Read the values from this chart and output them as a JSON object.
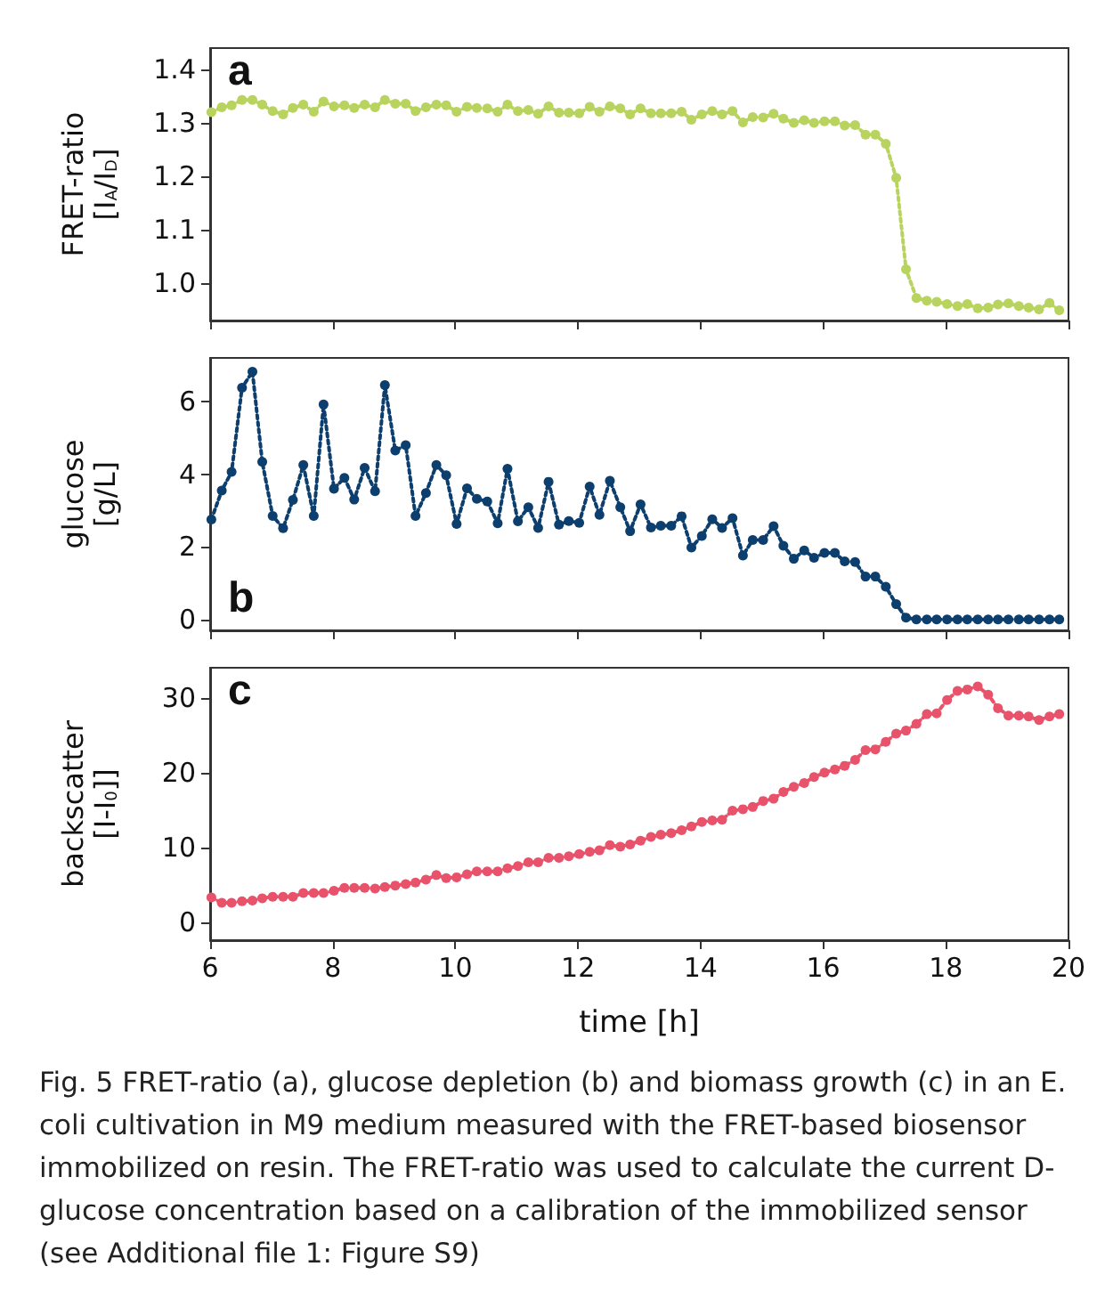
{
  "chart_data": [
    {
      "type": "line",
      "ylabel": "FRET-ratio\n[I$_{A}$/I$_{D}$]",
      "color": "#b9d35f",
      "marker": "circle",
      "line_style": "dotted",
      "tick_labels": "y",
      "xlim": [
        6,
        20
      ],
      "xticks": [
        6,
        8,
        10,
        12,
        14,
        16,
        18,
        20
      ],
      "ylim": [
        0.93,
        1.44
      ],
      "yticks": [
        {
          "value": 1.0,
          "label": "1.0"
        },
        1.1,
        1.2,
        1.3,
        1.4
      ],
      "x": [
        6.02,
        6.19,
        6.35,
        6.52,
        6.69,
        6.85,
        7.02,
        7.19,
        7.35,
        7.52,
        7.69,
        7.85,
        8.02,
        8.19,
        8.35,
        8.52,
        8.69,
        8.85,
        9.02,
        9.19,
        9.35,
        9.52,
        9.69,
        9.85,
        10.02,
        10.19,
        10.35,
        10.52,
        10.69,
        10.85,
        11.02,
        11.19,
        11.35,
        11.52,
        11.69,
        11.85,
        12.02,
        12.19,
        12.35,
        12.52,
        12.69,
        12.85,
        13.02,
        13.19,
        13.35,
        13.52,
        13.69,
        13.85,
        14.02,
        14.19,
        14.35,
        14.52,
        14.69,
        14.85,
        15.02,
        15.19,
        15.35,
        15.52,
        15.69,
        15.85,
        16.02,
        16.19,
        16.35,
        16.52,
        16.69,
        16.85,
        17.02,
        17.19,
        17.35,
        17.52,
        17.69,
        17.85,
        18.02,
        18.19,
        18.35,
        18.52,
        18.69,
        18.85,
        19.02,
        19.19,
        19.35,
        19.52,
        19.69,
        19.85
      ],
      "values": [
        1.32,
        1.329,
        1.333,
        1.343,
        1.343,
        1.334,
        1.322,
        1.316,
        1.328,
        1.334,
        1.321,
        1.34,
        1.331,
        1.333,
        1.328,
        1.334,
        1.329,
        1.343,
        1.336,
        1.336,
        1.322,
        1.329,
        1.334,
        1.333,
        1.321,
        1.33,
        1.328,
        1.327,
        1.321,
        1.334,
        1.322,
        1.324,
        1.317,
        1.331,
        1.319,
        1.319,
        1.318,
        1.33,
        1.321,
        1.331,
        1.327,
        1.316,
        1.327,
        1.318,
        1.318,
        1.318,
        1.321,
        1.306,
        1.316,
        1.322,
        1.316,
        1.322,
        1.301,
        1.311,
        1.31,
        1.317,
        1.308,
        1.3,
        1.305,
        1.3,
        1.303,
        1.303,
        1.295,
        1.296,
        1.278,
        1.278,
        1.261,
        1.197,
        1.026,
        0.972,
        0.967,
        0.965,
        0.961,
        0.957,
        0.961,
        0.953,
        0.954,
        0.96,
        0.962,
        0.957,
        0.954,
        0.951,
        0.963,
        0.949
      ],
      "annotations": [
        "a"
      ]
    },
    {
      "type": "line",
      "ylabel": "glucose\n[g/L]",
      "color": "#0d3f6e",
      "marker": "circle",
      "line_style": "dotted",
      "tick_labels": "y",
      "xlim": [
        6,
        20
      ],
      "xticks": [
        6,
        8,
        10,
        12,
        14,
        16,
        18,
        20
      ],
      "ylim": [
        -0.3,
        7.2
      ],
      "yticks": [
        0,
        2,
        4,
        6
      ],
      "x": [
        6.02,
        6.19,
        6.35,
        6.52,
        6.69,
        6.85,
        7.02,
        7.19,
        7.35,
        7.52,
        7.69,
        7.85,
        8.02,
        8.19,
        8.35,
        8.52,
        8.69,
        8.85,
        9.02,
        9.19,
        9.35,
        9.52,
        9.69,
        9.85,
        10.02,
        10.19,
        10.35,
        10.52,
        10.69,
        10.85,
        11.02,
        11.19,
        11.35,
        11.52,
        11.69,
        11.85,
        12.02,
        12.19,
        12.35,
        12.52,
        12.69,
        12.85,
        13.02,
        13.19,
        13.35,
        13.52,
        13.69,
        13.85,
        14.02,
        14.19,
        14.35,
        14.52,
        14.69,
        14.85,
        15.02,
        15.19,
        15.35,
        15.52,
        15.69,
        15.85,
        16.02,
        16.19,
        16.35,
        16.52,
        16.69,
        16.85,
        17.02,
        17.19,
        17.35,
        17.52,
        17.69,
        17.85,
        18.02,
        18.19,
        18.35,
        18.52,
        18.69,
        18.85,
        19.02,
        19.19,
        19.35,
        19.52,
        19.69,
        19.85
      ],
      "values": [
        2.75,
        3.55,
        4.06,
        6.38,
        6.82,
        4.34,
        2.85,
        2.51,
        3.29,
        4.25,
        2.85,
        5.92,
        3.6,
        3.9,
        3.3,
        4.17,
        3.53,
        6.45,
        4.65,
        4.8,
        2.85,
        3.48,
        4.25,
        3.97,
        2.63,
        3.61,
        3.32,
        3.25,
        2.65,
        4.15,
        2.7,
        3.09,
        2.52,
        3.79,
        2.61,
        2.71,
        2.66,
        3.66,
        2.88,
        3.82,
        3.09,
        2.43,
        3.17,
        2.53,
        2.58,
        2.58,
        2.84,
        1.98,
        2.3,
        2.76,
        2.52,
        2.79,
        1.76,
        2.19,
        2.19,
        2.57,
        2.03,
        1.67,
        1.9,
        1.7,
        1.83,
        1.83,
        1.6,
        1.58,
        1.18,
        1.18,
        0.9,
        0.42,
        0.05,
        0,
        0,
        0,
        0,
        0,
        0,
        0,
        0,
        0,
        0,
        0,
        0,
        0,
        0,
        0
      ],
      "annotations": [
        "b"
      ]
    },
    {
      "type": "line",
      "ylabel": "backscatter\n[I-I$_{0}$]]",
      "xlabel": "time [h]",
      "color": "#e8526b",
      "marker": "circle",
      "line_style": "dotted",
      "xlim": [
        6,
        20
      ],
      "xticks": [
        6,
        8,
        10,
        12,
        14,
        16,
        18,
        20
      ],
      "ylim": [
        -2.4,
        34
      ],
      "yticks": [
        0,
        10,
        20,
        30
      ],
      "x": [
        6.02,
        6.19,
        6.35,
        6.52,
        6.69,
        6.85,
        7.02,
        7.19,
        7.35,
        7.52,
        7.69,
        7.85,
        8.02,
        8.19,
        8.35,
        8.52,
        8.69,
        8.85,
        9.02,
        9.19,
        9.35,
        9.52,
        9.69,
        9.85,
        10.02,
        10.19,
        10.35,
        10.52,
        10.69,
        10.85,
        11.02,
        11.19,
        11.35,
        11.52,
        11.69,
        11.85,
        12.02,
        12.19,
        12.35,
        12.52,
        12.69,
        12.85,
        13.02,
        13.19,
        13.35,
        13.52,
        13.69,
        13.85,
        14.02,
        14.19,
        14.35,
        14.52,
        14.69,
        14.85,
        15.02,
        15.19,
        15.35,
        15.52,
        15.69,
        15.85,
        16.02,
        16.19,
        16.35,
        16.52,
        16.69,
        16.85,
        17.02,
        17.19,
        17.35,
        17.52,
        17.69,
        17.85,
        18.02,
        18.19,
        18.35,
        18.52,
        18.69,
        18.85,
        19.02,
        19.19,
        19.35,
        19.52,
        19.69,
        19.85
      ],
      "values": [
        3.3,
        2.6,
        2.6,
        2.8,
        2.9,
        3.2,
        3.4,
        3.4,
        3.4,
        3.9,
        3.9,
        3.9,
        4.2,
        4.6,
        4.6,
        4.6,
        4.5,
        4.7,
        4.9,
        5.1,
        5.3,
        5.7,
        6.3,
        5.9,
        6.0,
        6.4,
        6.8,
        6.8,
        6.8,
        7.2,
        7.5,
        8.0,
        8.0,
        8.6,
        8.6,
        8.8,
        9.1,
        9.4,
        9.6,
        10.3,
        10.1,
        10.4,
        10.9,
        11.4,
        11.7,
        11.9,
        12.3,
        12.8,
        13.4,
        13.6,
        13.7,
        14.9,
        15.1,
        15.4,
        16.2,
        16.5,
        17.4,
        18.1,
        18.6,
        19.4,
        20.0,
        20.4,
        20.9,
        21.7,
        23.0,
        23.1,
        24.1,
        25.2,
        25.6,
        26.5,
        27.8,
        27.9,
        29.7,
        30.9,
        31.1,
        31.5,
        30.4,
        28.6,
        27.6,
        27.6,
        27.5,
        27.0,
        27.5,
        27.8
      ],
      "annotations": [
        "c",
        "Fig. 5  FRET-ratio (a), glucose depletion (b) and biomass growth (c) in an E. coli cultivation in M9 medium measured with the FRET-based biosensor immobilized on resin. The FRET-ratio was used to calculate the current D-glucose concentration based on a calibration of the immobilized sensor (see Additional file 1: Figure S9)"
      ]
    }
  ]
}
